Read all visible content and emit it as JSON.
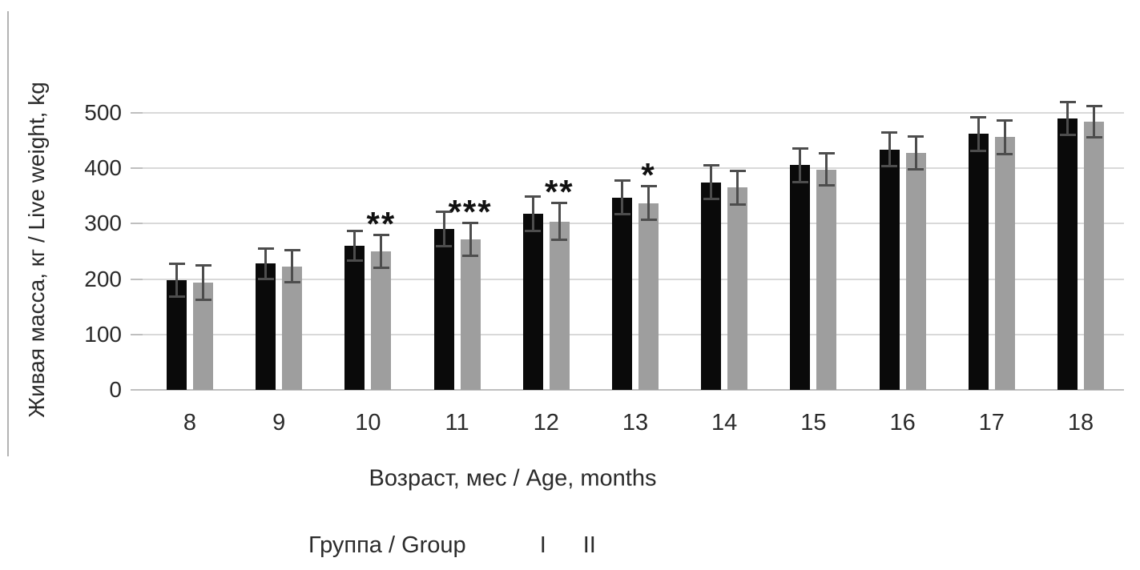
{
  "figure": {
    "legend_title": "Группа / Group"
  },
  "chart_data": {
    "type": "bar",
    "title": "",
    "xlabel": "Возраст, мес / Age, months",
    "ylabel": "Живая масса, кг / Live weight, kg",
    "categories": [
      "8",
      "9",
      "10",
      "11",
      "12",
      "13",
      "14",
      "15",
      "16",
      "17",
      "18"
    ],
    "series": [
      {
        "name": "I",
        "color": "#0a0a0a",
        "values": [
          198,
          228,
          260,
          290,
          318,
          347,
          375,
          406,
          434,
          462,
          490
        ],
        "errors": [
          30,
          28,
          28,
          32,
          32,
          31,
          31,
          31,
          31,
          31,
          30
        ]
      },
      {
        "name": "II",
        "color": "#9e9e9e",
        "values": [
          194,
          223,
          250,
          272,
          304,
          337,
          365,
          398,
          428,
          456,
          484
        ],
        "errors": [
          32,
          30,
          30,
          30,
          34,
          31,
          31,
          30,
          30,
          31,
          29
        ]
      }
    ],
    "significance_markers": [
      {
        "category": "10",
        "marker": "**"
      },
      {
        "category": "11",
        "marker": "***"
      },
      {
        "category": "12",
        "marker": "**"
      },
      {
        "category": "13",
        "marker": "*"
      }
    ],
    "ylim": [
      0,
      500
    ],
    "yticks": [
      0,
      100,
      200,
      300,
      400,
      500
    ],
    "grid": true,
    "gridline_color": "#d9d9d9",
    "baseline_color": "#bfbfbf",
    "error_bar_color": "#4d4d4d",
    "legend_position": "bottom"
  }
}
